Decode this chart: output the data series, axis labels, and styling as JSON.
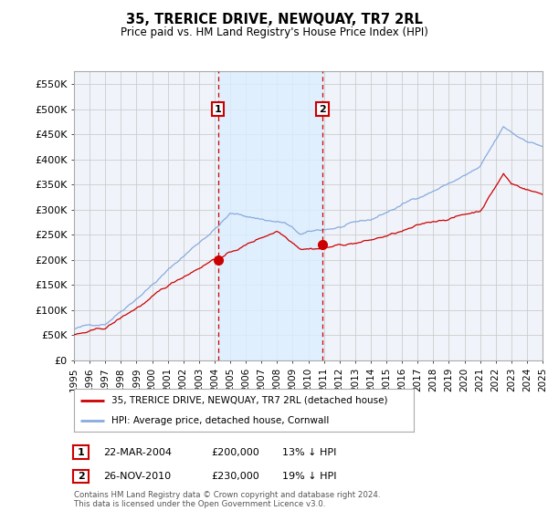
{
  "title": "35, TRERICE DRIVE, NEWQUAY, TR7 2RL",
  "subtitle": "Price paid vs. HM Land Registry's House Price Index (HPI)",
  "property_label": "35, TRERICE DRIVE, NEWQUAY, TR7 2RL (detached house)",
  "hpi_label": "HPI: Average price, detached house, Cornwall",
  "footnote": "Contains HM Land Registry data © Crown copyright and database right 2024.\nThis data is licensed under the Open Government Licence v3.0.",
  "transactions": [
    {
      "num": 1,
      "date": "22-MAR-2004",
      "price": "£200,000",
      "pct": "13%",
      "dir": "↓",
      "year": 2004.22
    },
    {
      "num": 2,
      "date": "26-NOV-2010",
      "price": "£230,000",
      "pct": "19%",
      "dir": "↓",
      "year": 2010.9
    }
  ],
  "property_color": "#cc0000",
  "hpi_color": "#88aadd",
  "shade_color": "#ddeeff",
  "background_color": "#ffffff",
  "grid_color": "#cccccc",
  "plot_bg_color": "#f0f4fa",
  "ylim": [
    0,
    575000
  ],
  "yticks": [
    0,
    50000,
    100000,
    150000,
    200000,
    250000,
    300000,
    350000,
    400000,
    450000,
    500000,
    550000
  ],
  "ytick_labels": [
    "£0",
    "£50K",
    "£100K",
    "£150K",
    "£200K",
    "£250K",
    "£300K",
    "£350K",
    "£400K",
    "£450K",
    "£500K",
    "£550K"
  ],
  "year_start": 1995,
  "year_end": 2025
}
